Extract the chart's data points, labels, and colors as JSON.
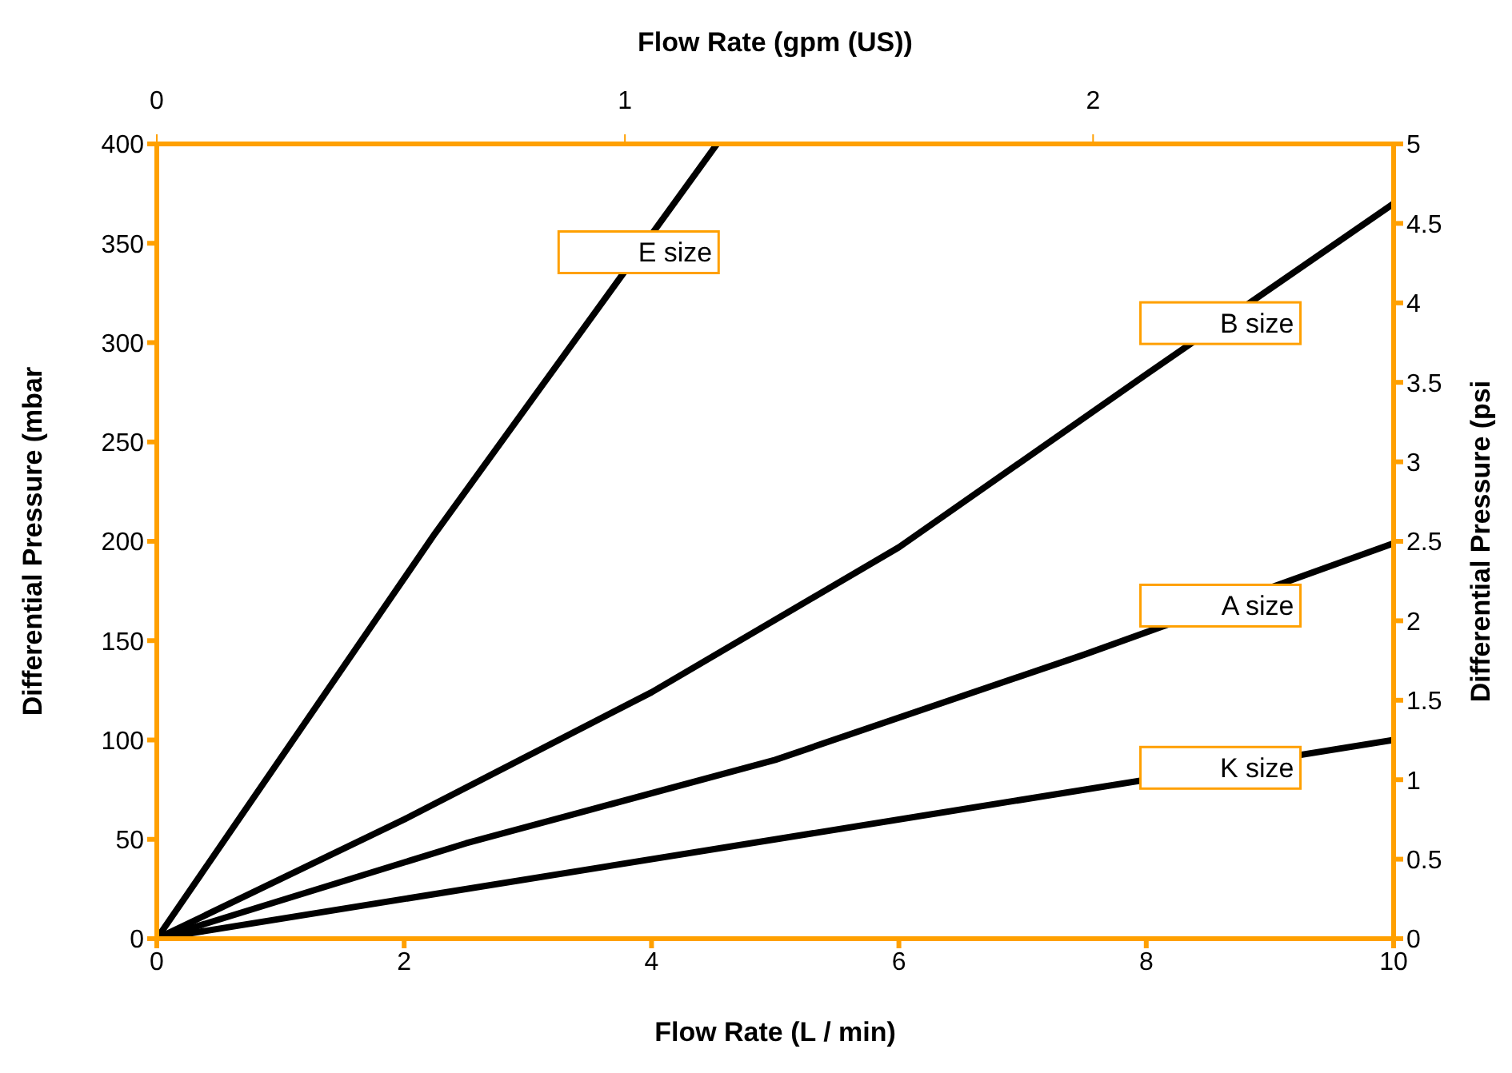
{
  "chart_data": {
    "type": "line",
    "xlabel": "Flow Rate (L / min)",
    "ylabel": "Differential Pressure (mbar",
    "y2label": "Differential Pressure (psi",
    "x2label": "Flow Rate (gpm (US))",
    "xlim": [
      0,
      10
    ],
    "xticks": [
      0,
      2,
      4,
      6,
      8,
      10
    ],
    "ylim": [
      0,
      400
    ],
    "yticks": [
      0,
      50,
      100,
      150,
      200,
      250,
      300,
      350,
      400
    ],
    "y2lim": [
      0,
      5
    ],
    "y2ticks": [
      0,
      0.5,
      1,
      1.5,
      2,
      2.5,
      3,
      3.5,
      4,
      4.5,
      5
    ],
    "x2lim": [
      0,
      2.642
    ],
    "x2ticks": [
      0,
      1,
      2
    ],
    "grid": false,
    "marker": "none",
    "line_style": "solid",
    "series": [
      {
        "name": "E size",
        "color": "#000000",
        "x": [
          0,
          2.25,
          4.53
        ],
        "values": [
          0,
          204,
          400
        ]
      },
      {
        "name": "B size",
        "color": "#000000",
        "x": [
          0,
          2,
          4,
          6,
          8,
          10
        ],
        "values": [
          0,
          60,
          124,
          197,
          284,
          370
        ]
      },
      {
        "name": "A size",
        "color": "#000000",
        "x": [
          0,
          2.5,
          5,
          7.5,
          10
        ],
        "values": [
          0,
          48,
          90,
          143,
          199
        ]
      },
      {
        "name": "K size",
        "color": "#000000",
        "x": [
          0,
          10
        ],
        "values": [
          0,
          100
        ]
      }
    ]
  }
}
